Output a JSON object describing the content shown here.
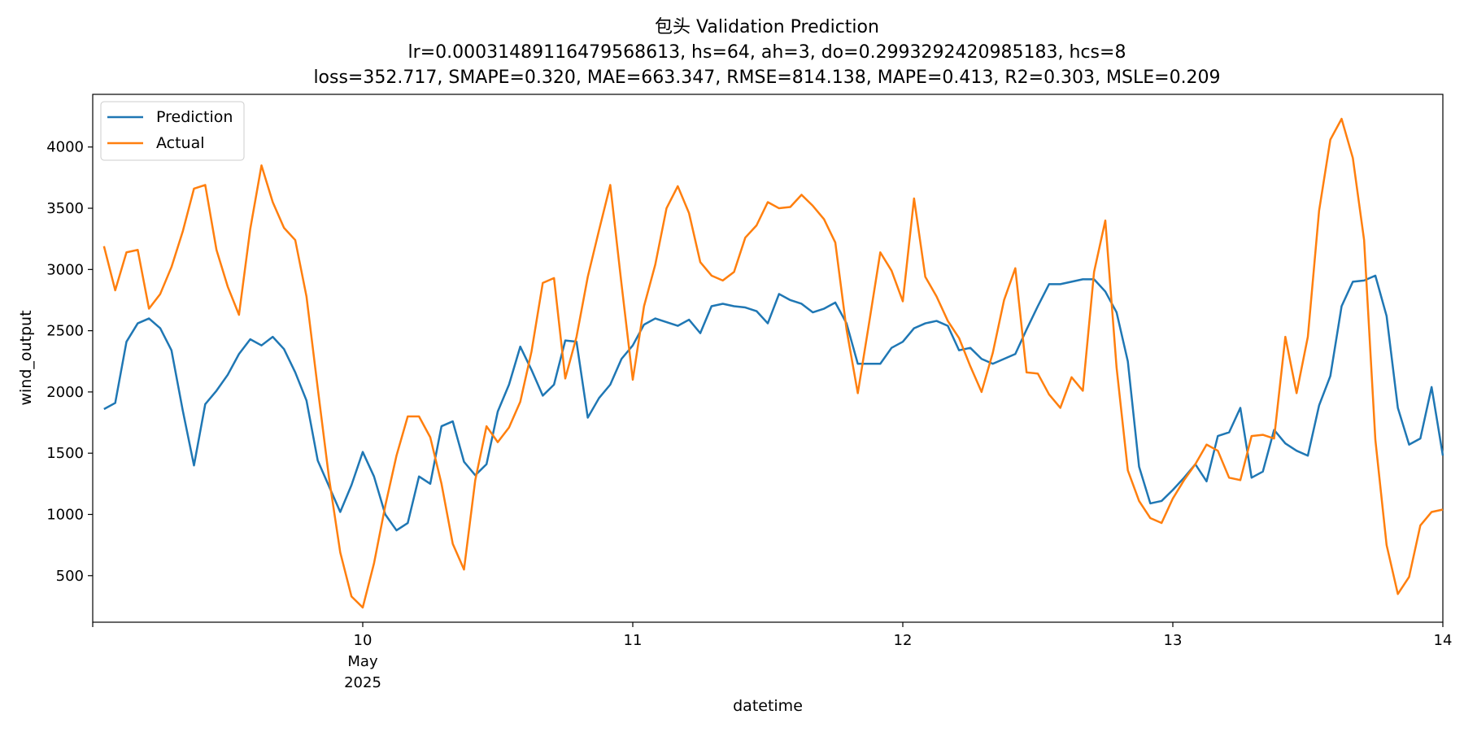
{
  "chart_data": {
    "type": "line",
    "title": "包头 Validation Prediction",
    "subtitle_lines": [
      "lr=0.00031489116479568613, hs=64, ah=3, do=0.2993292420985183, hcs=8",
      "loss=352.717, SMAPE=0.320, MAE=663.347, RMSE=814.138, MAPE=0.413, R2=0.303, MSLE=0.209"
    ],
    "xlabel": "datetime",
    "ylabel": "wind_output",
    "x_start": "2025-05-09 01:00",
    "x_step_hours": 1,
    "xlim": [
      "2025-05-09 00:00",
      "2025-05-14 00:00"
    ],
    "ylim": [
      120,
      4430
    ],
    "x_ticks": [
      {
        "at": "2025-05-10",
        "lines": [
          "10",
          "May",
          "2025"
        ]
      },
      {
        "at": "2025-05-11",
        "lines": [
          "11"
        ]
      },
      {
        "at": "2025-05-12",
        "lines": [
          "12"
        ]
      },
      {
        "at": "2025-05-13",
        "lines": [
          "13"
        ]
      },
      {
        "at": "2025-05-14",
        "lines": [
          "14"
        ]
      }
    ],
    "y_ticks": [
      500,
      1000,
      1500,
      2000,
      2500,
      3000,
      3500,
      4000
    ],
    "legend_position": "top-left",
    "grid": false,
    "series": [
      {
        "name": "Prediction",
        "color": "#1f77b4",
        "values": [
          1860,
          1910,
          2410,
          2560,
          2600,
          2520,
          2340,
          1850,
          1400,
          1900,
          2010,
          2140,
          2310,
          2430,
          2380,
          2450,
          2350,
          2160,
          1930,
          1440,
          1230,
          1020,
          1240,
          1510,
          1310,
          1000,
          870,
          930,
          1310,
          1250,
          1720,
          1760,
          1430,
          1320,
          1410,
          1840,
          2060,
          2370,
          2180,
          1970,
          2060,
          2420,
          2410,
          1790,
          1950,
          2060,
          2270,
          2380,
          2550,
          2600,
          2570,
          2540,
          2590,
          2480,
          2700,
          2720,
          2700,
          2690,
          2660,
          2560,
          2800,
          2750,
          2720,
          2650,
          2680,
          2730,
          2560,
          2230,
          2230,
          2230,
          2360,
          2410,
          2520,
          2560,
          2580,
          2540,
          2340,
          2360,
          2270,
          2230,
          2270,
          2310,
          2510,
          2700,
          2880,
          2880,
          2900,
          2920,
          2920,
          2820,
          2650,
          2250,
          1390,
          1090,
          1110,
          1200,
          1300,
          1410,
          1270,
          1640,
          1670,
          1870,
          1300,
          1350,
          1690,
          1580,
          1520,
          1480,
          1890,
          2130,
          2700,
          2900,
          2910,
          2950,
          2620,
          1870,
          1570,
          1620,
          2040,
          1480
        ]
      },
      {
        "name": "Actual",
        "color": "#ff7f0e",
        "values": [
          3190,
          2830,
          3140,
          3160,
          2680,
          2800,
          3020,
          3310,
          3660,
          3690,
          3160,
          2860,
          2630,
          3330,
          3850,
          3550,
          3340,
          3240,
          2780,
          2030,
          1300,
          690,
          330,
          240,
          600,
          1070,
          1480,
          1800,
          1800,
          1630,
          1250,
          760,
          550,
          1280,
          1720,
          1590,
          1710,
          1920,
          2330,
          2890,
          2930,
          2110,
          2450,
          2940,
          3320,
          3690,
          2880,
          2100,
          2700,
          3040,
          3500,
          3680,
          3460,
          3060,
          2950,
          2910,
          2980,
          3260,
          3360,
          3550,
          3500,
          3510,
          3610,
          3520,
          3410,
          3220,
          2510,
          1990,
          2560,
          3140,
          2990,
          2740,
          3580,
          2940,
          2780,
          2580,
          2440,
          2210,
          2000,
          2320,
          2750,
          3010,
          2160,
          2150,
          1980,
          1870,
          2120,
          2010,
          2980,
          3400,
          2200,
          1360,
          1110,
          970,
          930,
          1130,
          1280,
          1410,
          1570,
          1520,
          1300,
          1280,
          1640,
          1650,
          1620,
          2450,
          1990,
          2450,
          3480,
          4060,
          4230,
          3910,
          3240,
          1610,
          750,
          350,
          490,
          910,
          1020,
          1040
        ]
      }
    ]
  }
}
